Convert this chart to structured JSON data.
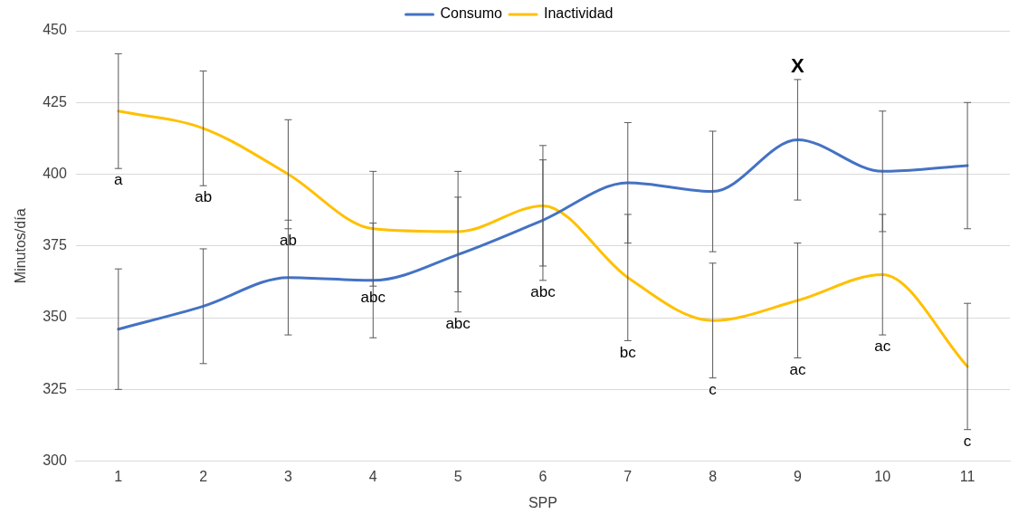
{
  "chart_data": {
    "type": "line",
    "xlabel": "SPP",
    "ylabel": "Minutos/día",
    "categories": [
      "1",
      "2",
      "3",
      "4",
      "5",
      "6",
      "7",
      "8",
      "9",
      "10",
      "11"
    ],
    "series": [
      {
        "name": "Consumo",
        "color": "#4472c4",
        "values": [
          346,
          354,
          364,
          363,
          372,
          384,
          397,
          394,
          412,
          401,
          403
        ],
        "errors": [
          21,
          20,
          20,
          20,
          20,
          21,
          21,
          21,
          21,
          21,
          22
        ]
      },
      {
        "name": "Inactividad",
        "color": "#ffc000",
        "values": [
          422,
          416,
          400,
          381,
          380,
          389,
          364,
          349,
          356,
          365,
          333
        ],
        "errors": [
          20,
          20,
          19,
          20,
          21,
          21,
          22,
          20,
          20,
          21,
          22
        ]
      }
    ],
    "annotations": [
      {
        "text": "a",
        "x": "1",
        "y": 402
      },
      {
        "text": "ab",
        "x": "2",
        "y": 396
      },
      {
        "text": "ab",
        "x": "3",
        "y": 381
      },
      {
        "text": "abc",
        "x": "4",
        "y": 361
      },
      {
        "text": "abc",
        "x": "5",
        "y": 352
      },
      {
        "text": "abc",
        "x": "6",
        "y": 363
      },
      {
        "text": "bc",
        "x": "7",
        "y": 342
      },
      {
        "text": "c",
        "x": "8",
        "y": 329
      },
      {
        "text": "ac",
        "x": "9",
        "y": 336
      },
      {
        "text": "ac",
        "x": "10",
        "y": 344
      },
      {
        "text": "c",
        "x": "11",
        "y": 311
      },
      {
        "text": "X",
        "x": "9",
        "y": 433
      }
    ],
    "ylim": [
      300,
      450
    ],
    "yticks": [
      300,
      325,
      350,
      375,
      400,
      425,
      450
    ],
    "grid": "y",
    "legend": "top",
    "marker": "none",
    "line_style": "solid"
  }
}
